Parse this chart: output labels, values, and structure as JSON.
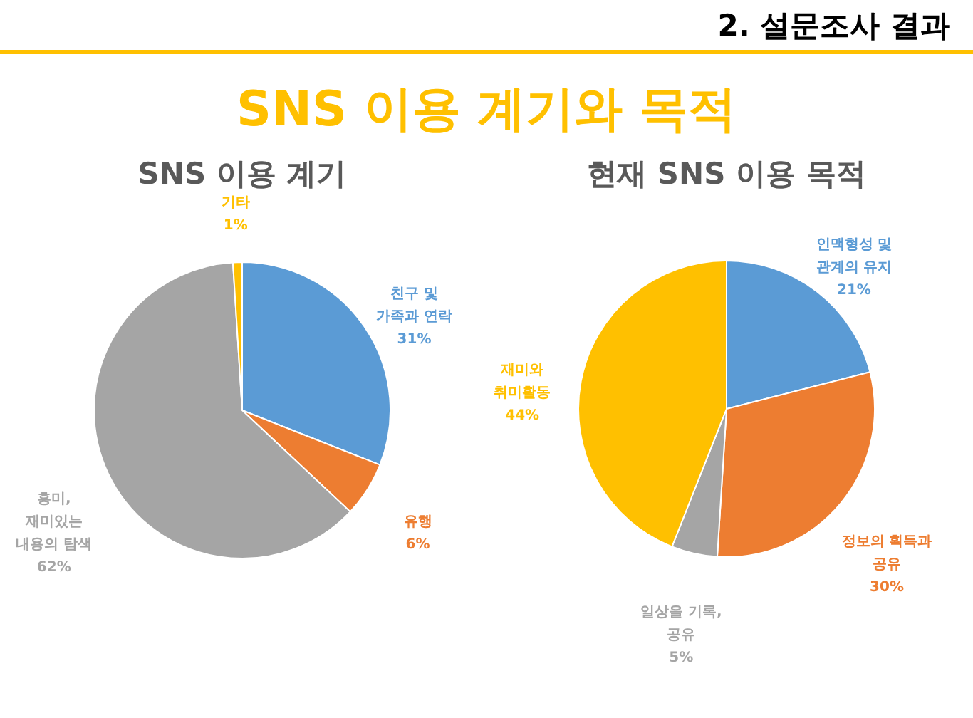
{
  "chart_data": [
    {
      "type": "pie",
      "title": "SNS 이용 계기",
      "annotations": [
        "2. 설문조사 결과",
        "SNS 이용 계기와 목적"
      ],
      "categories": [
        "친구 및\n가족과 연락",
        "유행",
        "흥미,\n재미있는\n내용의 탐색",
        "기타"
      ],
      "values": [
        31,
        6,
        62,
        1
      ],
      "value_labels": [
        "31%",
        "6%",
        "62%",
        "1%"
      ],
      "colors": [
        "#5b9bd5",
        "#ed7d31",
        "#a5a5a5",
        "#ffc000"
      ]
    },
    {
      "type": "pie",
      "title": "현재 SNS 이용 목적",
      "categories": [
        "인맥형성 및\n관계의 유지",
        "정보의 획득과\n공유",
        "일상을 기록,\n공유",
        "재미와\n취미활동"
      ],
      "values": [
        21,
        30,
        5,
        44
      ],
      "value_labels": [
        "21%",
        "30%",
        "5%",
        "44%"
      ],
      "colors": [
        "#5b9bd5",
        "#ed7d31",
        "#a5a5a5",
        "#ffc000"
      ]
    }
  ]
}
